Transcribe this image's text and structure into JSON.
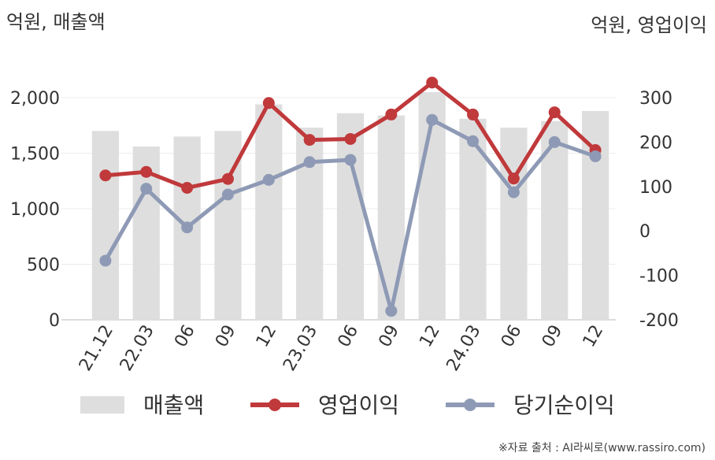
{
  "chart_data": {
    "type": "bar+line",
    "left_axis_unit": "억원, 매출액",
    "right_axis_unit": "억원, 영업이익",
    "categories": [
      "21.12",
      "22.03",
      "06",
      "09",
      "12",
      "23.03",
      "06",
      "09",
      "12",
      "24.03",
      "06",
      "09",
      "12"
    ],
    "left_axis": {
      "ylim": [
        0,
        2000
      ],
      "ticks": [
        "0",
        "500",
        "1,000",
        "1,500",
        "2,000"
      ],
      "tick_values": [
        0,
        500,
        1000,
        1500,
        2000
      ]
    },
    "right_axis": {
      "ylim": [
        -200,
        300
      ],
      "ticks": [
        "-200",
        "-100",
        "0",
        "100",
        "200",
        "300"
      ],
      "tick_values": [
        -200,
        -100,
        0,
        100,
        200,
        300
      ]
    },
    "series": [
      {
        "name": "매출액",
        "type": "bar",
        "axis": "left",
        "color": "#dedede",
        "values": [
          1700,
          1560,
          1650,
          1700,
          1940,
          1730,
          1860,
          1840,
          2050,
          1810,
          1730,
          1790,
          1880
        ]
      },
      {
        "name": "영업이익",
        "type": "line",
        "axis": "right",
        "color": "#c0393b",
        "values": [
          125,
          133,
          97,
          117,
          288,
          205,
          207,
          262,
          334,
          262,
          118,
          267,
          182
        ]
      },
      {
        "name": "당기순이익",
        "type": "line",
        "axis": "right",
        "color": "#8e9ab5",
        "values": [
          -67,
          95,
          8,
          82,
          115,
          155,
          160,
          -180,
          250,
          202,
          87,
          200,
          168
        ]
      }
    ],
    "grid": true,
    "legend": "bottom"
  },
  "footer": {
    "source": "※자료 출처 : AI라씨로(www.rassiro.com)"
  }
}
